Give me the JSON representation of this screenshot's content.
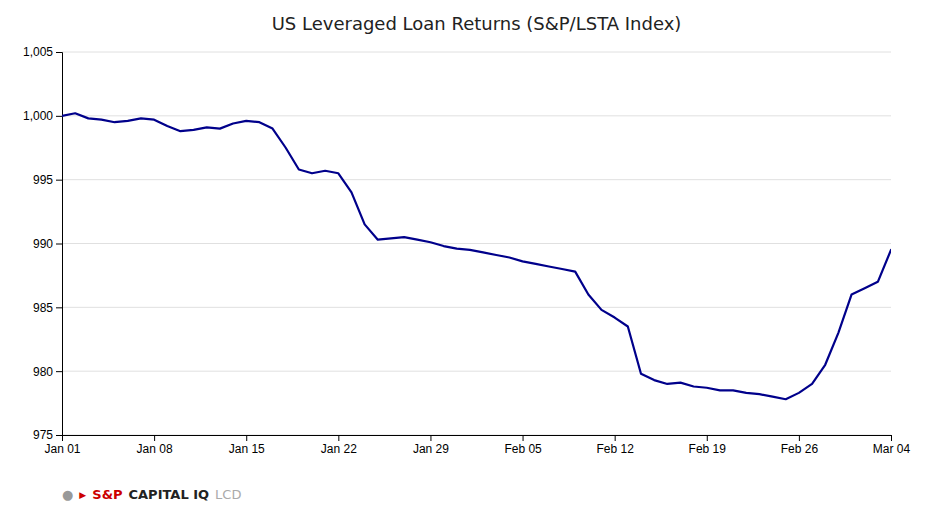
{
  "chart_data": {
    "type": "line",
    "title": "US Leveraged Loan Returns (S&P/LSTA Index)",
    "categories": [
      "Jan 01",
      null,
      null,
      null,
      null,
      null,
      null,
      "Jan 08",
      null,
      null,
      null,
      null,
      null,
      null,
      "Jan 15",
      null,
      null,
      null,
      null,
      null,
      null,
      "Jan 22",
      null,
      null,
      null,
      null,
      null,
      null,
      "Jan 29",
      null,
      null,
      null,
      null,
      null,
      null,
      "Feb 05",
      null,
      null,
      null,
      null,
      null,
      null,
      "Feb 12",
      null,
      null,
      null,
      null,
      null,
      null,
      "Feb 19",
      null,
      null,
      null,
      null,
      null,
      null,
      "Feb 26",
      null,
      null,
      null,
      null,
      null,
      null,
      "Mar 04"
    ],
    "values": [
      1000.0,
      1000.2,
      999.8,
      999.7,
      999.5,
      999.6,
      999.8,
      999.7,
      999.2,
      998.8,
      998.9,
      999.1,
      999.0,
      999.4,
      999.6,
      999.5,
      999.0,
      997.5,
      995.8,
      995.5,
      995.7,
      995.5,
      994.0,
      991.5,
      990.3,
      990.4,
      990.5,
      990.3,
      990.1,
      989.8,
      989.6,
      989.5,
      989.3,
      989.1,
      988.9,
      988.6,
      988.4,
      988.2,
      988.0,
      987.8,
      986.0,
      984.8,
      984.2,
      983.5,
      979.8,
      979.3,
      979.0,
      979.1,
      978.8,
      978.7,
      978.5,
      978.5,
      978.3,
      978.2,
      978.0,
      977.8,
      978.3,
      979.0,
      980.5,
      983.0,
      986.0,
      986.5,
      987.0,
      989.5
    ],
    "color": "#00008B",
    "ylim": [
      975,
      1005
    ],
    "yticks": [
      975,
      980,
      985,
      990,
      995,
      {
        "value": 1000,
        "label": "1,000"
      },
      {
        "value": 1005,
        "label": "1,005"
      }
    ],
    "grid": true,
    "annotations": [
      "●",
      "▶",
      "S&P",
      "CAPITAL IQ",
      "LCD"
    ]
  }
}
